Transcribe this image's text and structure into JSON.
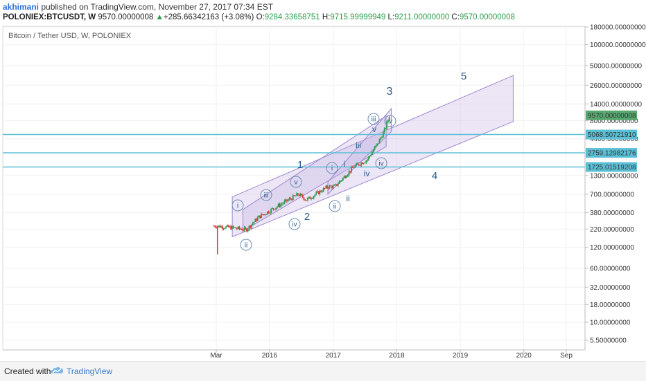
{
  "header": {
    "author": "akhimani",
    "published_text": "published on TradingView.com, November 27, 2017 07:34 EST",
    "symbol": "POLONIEX:BTCUSDT, W",
    "last": "9570.00000008",
    "change_arrow": "▲",
    "change": "+285.66342163 (+3.08%)",
    "open_label": "O:",
    "open": "9284.33658751",
    "high_label": "H:",
    "high": "9715.99999949",
    "low_label": "L:",
    "low": "9211.00000000",
    "close_label": "C:",
    "close": "9570.00000008"
  },
  "chart_data": {
    "type": "candlestick",
    "title": "Bitcoin / Tether USD, W, POLONIEX",
    "y_scale": "log",
    "y_ticks": [
      "180000.00000000",
      "100000.00000000",
      "50000.00000000",
      "26000.00000000",
      "14000.00000000",
      "8000.00000000",
      "4400.00000000",
      "1300.00000000",
      "700.00000000",
      "380.00000000",
      "220.00000000",
      "120.00000000",
      "60.00000000",
      "32.00000000",
      "18.00000000",
      "10.00000000",
      "5.50000000"
    ],
    "x_ticks": [
      "Mar",
      "2016",
      "2017",
      "2018",
      "2019",
      "2020",
      "Sep"
    ],
    "price_tags": [
      {
        "label": "9570.00000008",
        "color": "#58a870",
        "value": 9570
      },
      {
        "label": "5068.50721910",
        "color": "#5bc0d6",
        "value": 5068.5
      },
      {
        "label": "2759.12982176",
        "color": "#5bc0d6",
        "value": 2759.1
      },
      {
        "label": "1725.01519208",
        "color": "#5bc0d6",
        "value": 1725.0
      }
    ],
    "horizontal_levels": [
      5068.5072191,
      2759.12982176,
      1725.01519208
    ],
    "wave_labels": [
      {
        "text": "1"
      },
      {
        "text": "2"
      },
      {
        "text": "3"
      },
      {
        "text": "4"
      },
      {
        "text": "5"
      },
      {
        "text": "i"
      },
      {
        "text": "ii"
      },
      {
        "text": "iii"
      },
      {
        "text": "iv"
      },
      {
        "text": "v"
      }
    ],
    "circled_labels": [
      {
        "text": "i"
      },
      {
        "text": "ii"
      },
      {
        "text": "iii"
      },
      {
        "text": "iv"
      },
      {
        "text": "v"
      },
      {
        "text": "i"
      },
      {
        "text": "ii"
      },
      {
        "text": "iii"
      },
      {
        "text": "iv"
      },
      {
        "text": "v"
      }
    ]
  },
  "footer": {
    "created_with": "Created with",
    "brand": "TradingView"
  },
  "colors": {
    "up": "#2a9d4a",
    "down": "#e0393e",
    "channel_fill": "#c8b8e6",
    "channel_stroke": "#9d86cf",
    "level_line": "#5bc0d6",
    "wave_text": "#2a5d8c"
  }
}
